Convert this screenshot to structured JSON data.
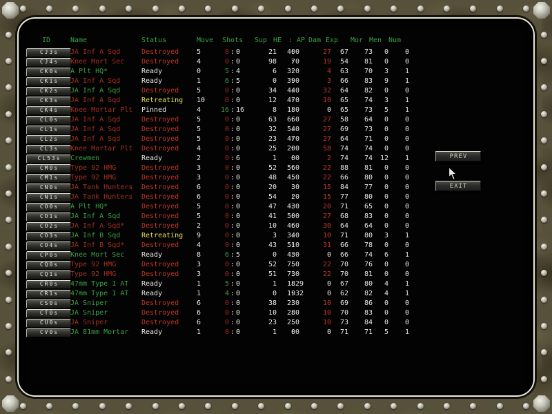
{
  "buttons": {
    "prev": "PREV",
    "exit": "EXIT"
  },
  "colors": {
    "green": "#3aa143",
    "name_red": "#a5301f",
    "status_red": "#c23425",
    "shot_red": "#a82415",
    "white": "#e8e8e6",
    "yellow": "#e4e052"
  },
  "table": {
    "headers": [
      "ID",
      "Name",
      "Status",
      "Move",
      "Shots",
      "Sup",
      "HE",
      ": AP",
      "Dam",
      "Exp",
      "Mor",
      "Men",
      "Num"
    ],
    "rows": [
      {
        "id": "CJ3s",
        "name": "JA Inf A Sqd",
        "name_color": "red",
        "status": "Destroyed",
        "move": "5",
        "shots": [
          "0",
          "0"
        ],
        "sup": "21",
        "he": "40",
        "ap": "0",
        "dam": "27",
        "exp": "67",
        "mor": "73",
        "men": "0",
        "num": "0"
      },
      {
        "id": "CJ4s",
        "name": "Knee Mort Sec",
        "name_color": "red",
        "status": "Destroyed",
        "move": "4",
        "shots": [
          "0",
          "0"
        ],
        "sup": "98",
        "he": "7",
        "ap": "0",
        "dam": "19",
        "exp": "54",
        "mor": "81",
        "men": "0",
        "num": "0"
      },
      {
        "id": "CK0s",
        "name": "A Plt HQ*",
        "name_color": "green",
        "status": "Ready",
        "move": "0",
        "shots": [
          "5",
          "4"
        ],
        "sup": "6",
        "he": "32",
        "ap": "0",
        "dam": "4",
        "exp": "63",
        "mor": "70",
        "men": "3",
        "num": "1"
      },
      {
        "id": "CK1s",
        "name": "JA Inf A Sqd",
        "name_color": "red",
        "status": "Ready",
        "move": "1",
        "shots": [
          "6",
          "5"
        ],
        "sup": "0",
        "he": "39",
        "ap": "0",
        "dam": "3",
        "exp": "66",
        "mor": "83",
        "men": "9",
        "num": "1"
      },
      {
        "id": "CK2s",
        "name": "JA Inf A Sqd",
        "name_color": "green",
        "status": "Destroyed",
        "move": "5",
        "shots": [
          "0",
          "0"
        ],
        "sup": "34",
        "he": "44",
        "ap": "0",
        "dam": "32",
        "exp": "64",
        "mor": "82",
        "men": "0",
        "num": "0"
      },
      {
        "id": "CK3s",
        "name": "JA Inf A Sqd",
        "name_color": "red",
        "status": "Retreating",
        "move": "10",
        "shots": [
          "0",
          "0"
        ],
        "sup": "12",
        "he": "47",
        "ap": "0",
        "dam": "10",
        "exp": "65",
        "mor": "74",
        "men": "3",
        "num": "1"
      },
      {
        "id": "CK4s",
        "name": "Knee Mortar Plt",
        "name_color": "red",
        "status": "Pinned",
        "move": "4",
        "shots": [
          "16",
          "16"
        ],
        "sup": "8",
        "he": "18",
        "ap": "0",
        "dam": "0",
        "exp": "65",
        "mor": "73",
        "men": "5",
        "num": "1"
      },
      {
        "id": "CL0s",
        "name": "JA Inf A Sqd",
        "name_color": "red",
        "status": "Destroyed",
        "move": "5",
        "shots": [
          "0",
          "0"
        ],
        "sup": "63",
        "he": "66",
        "ap": "0",
        "dam": "27",
        "exp": "58",
        "mor": "64",
        "men": "0",
        "num": "0"
      },
      {
        "id": "CL1s",
        "name": "JA Inf A Sqd",
        "name_color": "red",
        "status": "Destroyed",
        "move": "5",
        "shots": [
          "0",
          "0"
        ],
        "sup": "32",
        "he": "54",
        "ap": "0",
        "dam": "27",
        "exp": "69",
        "mor": "73",
        "men": "0",
        "num": "0"
      },
      {
        "id": "CL2s",
        "name": "JA Inf A Sqd",
        "name_color": "red",
        "status": "Destroyed",
        "move": "5",
        "shots": [
          "0",
          "0"
        ],
        "sup": "23",
        "he": "47",
        "ap": "0",
        "dam": "27",
        "exp": "64",
        "mor": "71",
        "men": "0",
        "num": "0"
      },
      {
        "id": "CL3s",
        "name": "Knee Mortar Plt",
        "name_color": "red",
        "status": "Destroyed",
        "move": "4",
        "shots": [
          "0",
          "0"
        ],
        "sup": "25",
        "he": "20",
        "ap": "0",
        "dam": "58",
        "exp": "74",
        "mor": "74",
        "men": "0",
        "num": "0"
      },
      {
        "id": "CL53s",
        "name": "Crewmen",
        "name_color": "green",
        "status": "Ready",
        "move": "2",
        "shots": [
          "0",
          "6"
        ],
        "sup": "1",
        "he": "0",
        "ap": "0",
        "dam": "2",
        "exp": "74",
        "mor": "74",
        "men": "12",
        "num": "1"
      },
      {
        "id": "CM0s",
        "name": "Type 92 HMG",
        "name_color": "red",
        "status": "Destroyed",
        "move": "3",
        "shots": [
          "0",
          "0"
        ],
        "sup": "52",
        "he": "56",
        "ap": "0",
        "dam": "22",
        "exp": "88",
        "mor": "81",
        "men": "0",
        "num": "0"
      },
      {
        "id": "CM1s",
        "name": "Type 92 HMG",
        "name_color": "red",
        "status": "Destroyed",
        "move": "3",
        "shots": [
          "0",
          "0"
        ],
        "sup": "48",
        "he": "45",
        "ap": "0",
        "dam": "22",
        "exp": "66",
        "mor": "80",
        "men": "0",
        "num": "0"
      },
      {
        "id": "CN0s",
        "name": "JA Tank Hunters",
        "name_color": "red",
        "status": "Destroyed",
        "move": "6",
        "shots": [
          "0",
          "0"
        ],
        "sup": "20",
        "he": "3",
        "ap": "0",
        "dam": "15",
        "exp": "84",
        "mor": "77",
        "men": "0",
        "num": "0"
      },
      {
        "id": "CN1s",
        "name": "JA Tank Hunters",
        "name_color": "red",
        "status": "Destroyed",
        "move": "6",
        "shots": [
          "0",
          "0"
        ],
        "sup": "54",
        "he": "2",
        "ap": "0",
        "dam": "15",
        "exp": "77",
        "mor": "80",
        "men": "0",
        "num": "0"
      },
      {
        "id": "CO0s",
        "name": "A Plt HQ*",
        "name_color": "green",
        "status": "Destroyed",
        "move": "5",
        "shots": [
          "0",
          "0"
        ],
        "sup": "47",
        "he": "43",
        "ap": "0",
        "dam": "20",
        "exp": "71",
        "mor": "65",
        "men": "0",
        "num": "0"
      },
      {
        "id": "CO1s",
        "name": "JA Inf A Sqd",
        "name_color": "green",
        "status": "Destroyed",
        "move": "5",
        "shots": [
          "0",
          "0"
        ],
        "sup": "41",
        "he": "50",
        "ap": "0",
        "dam": "27",
        "exp": "68",
        "mor": "83",
        "men": "0",
        "num": "0"
      },
      {
        "id": "CO2s",
        "name": "JA Inf A Sqd*",
        "name_color": "red",
        "status": "Destroyed",
        "move": "2",
        "shots": [
          "0",
          "0"
        ],
        "sup": "10",
        "he": "46",
        "ap": "0",
        "dam": "30",
        "exp": "64",
        "mor": "64",
        "men": "0",
        "num": "0"
      },
      {
        "id": "CO3s",
        "name": "JA Inf B Sqd",
        "name_color": "green",
        "status": "Retreating",
        "move": "9",
        "shots": [
          "0",
          "0"
        ],
        "sup": "3",
        "he": "34",
        "ap": "0",
        "dam": "10",
        "exp": "71",
        "mor": "80",
        "men": "3",
        "num": "1"
      },
      {
        "id": "CO4s",
        "name": "JA Inf B Sqd*",
        "name_color": "red",
        "status": "Destroyed",
        "move": "4",
        "shots": [
          "0",
          "0"
        ],
        "sup": "43",
        "he": "51",
        "ap": "0",
        "dam": "31",
        "exp": "66",
        "mor": "78",
        "men": "0",
        "num": "0"
      },
      {
        "id": "CP0s",
        "name": "Knee Mort Sec",
        "name_color": "green",
        "status": "Ready",
        "move": "8",
        "shots": [
          "6",
          "5"
        ],
        "sup": "0",
        "he": "43",
        "ap": "0",
        "dam": "0",
        "exp": "66",
        "mor": "74",
        "men": "6",
        "num": "1"
      },
      {
        "id": "CQ0s",
        "name": "Type 92 HMG",
        "name_color": "red",
        "status": "Destroyed",
        "move": "3",
        "shots": [
          "0",
          "0"
        ],
        "sup": "52",
        "he": "75",
        "ap": "0",
        "dam": "22",
        "exp": "70",
        "mor": "76",
        "men": "0",
        "num": "0"
      },
      {
        "id": "CQ1s",
        "name": "Type 92 HMG",
        "name_color": "red",
        "status": "Destroyed",
        "move": "3",
        "shots": [
          "0",
          "0"
        ],
        "sup": "51",
        "he": "73",
        "ap": "0",
        "dam": "22",
        "exp": "70",
        "mor": "81",
        "men": "0",
        "num": "0"
      },
      {
        "id": "CR0s",
        "name": "47mm Type 1 AT",
        "name_color": "green",
        "status": "Ready",
        "move": "1",
        "shots": [
          "5",
          "0"
        ],
        "sup": "1",
        "he": "18",
        "ap": "29",
        "dam": "0",
        "exp": "67",
        "mor": "80",
        "men": "4",
        "num": "1"
      },
      {
        "id": "CR1s",
        "name": "47mm Type 1 AT",
        "name_color": "green",
        "status": "Ready",
        "move": "1",
        "shots": [
          "4",
          "0"
        ],
        "sup": "0",
        "he": "19",
        "ap": "32",
        "dam": "0",
        "exp": "62",
        "mor": "82",
        "men": "4",
        "num": "1"
      },
      {
        "id": "CS0s",
        "name": "JA Sniper",
        "name_color": "green",
        "status": "Destroyed",
        "move": "6",
        "shots": [
          "0",
          "0"
        ],
        "sup": "38",
        "he": "23",
        "ap": "0",
        "dam": "10",
        "exp": "69",
        "mor": "86",
        "men": "0",
        "num": "0"
      },
      {
        "id": "CT0s",
        "name": "JA Sniper",
        "name_color": "green",
        "status": "Destroyed",
        "move": "6",
        "shots": [
          "0",
          "0"
        ],
        "sup": "10",
        "he": "28",
        "ap": "0",
        "dam": "10",
        "exp": "70",
        "mor": "83",
        "men": "0",
        "num": "0"
      },
      {
        "id": "CU0s",
        "name": "JA Sniper",
        "name_color": "red",
        "status": "Destroyed",
        "move": "6",
        "shots": [
          "0",
          "0"
        ],
        "sup": "23",
        "he": "25",
        "ap": "0",
        "dam": "10",
        "exp": "73",
        "mor": "84",
        "men": "0",
        "num": "0"
      },
      {
        "id": "CV0s",
        "name": "JA 81mm Mortar",
        "name_color": "green",
        "status": "Ready",
        "move": "1",
        "shots": [
          "0",
          "0"
        ],
        "sup": "1",
        "he": "0",
        "ap": "0",
        "dam": "0",
        "exp": "71",
        "mor": "71",
        "men": "5",
        "num": "1"
      }
    ]
  }
}
